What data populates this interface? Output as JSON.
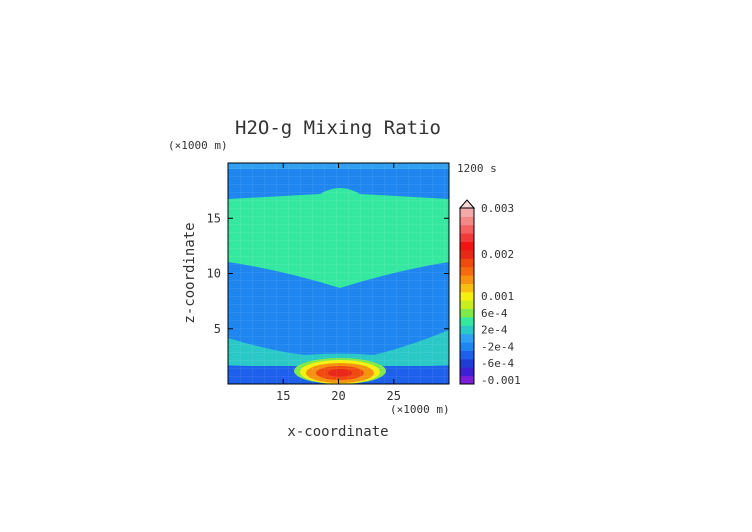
{
  "chart_data": {
    "type": "heatmap",
    "title": "H2O-g Mixing Ratio",
    "time_label": "1200 s",
    "xlabel": "x-coordinate",
    "ylabel": "z-coordinate",
    "x_unit": "(×1000 m)",
    "y_unit": "(×1000 m)",
    "xlim": [
      10,
      30
    ],
    "ylim": [
      0,
      20
    ],
    "x_ticks": [
      {
        "value": 15,
        "label": "15"
      },
      {
        "value": 20,
        "label": "20"
      },
      {
        "value": 25,
        "label": "25"
      }
    ],
    "y_ticks": [
      {
        "value": 5,
        "label": "5"
      },
      {
        "value": 10,
        "label": "10"
      },
      {
        "value": 15,
        "label": "15"
      }
    ],
    "colorbar": {
      "levels": [
        {
          "color": "#7a1fd6"
        },
        {
          "color": "#3c1fd6"
        },
        {
          "color": "#1f3cd6"
        },
        {
          "color": "#1e60ec"
        },
        {
          "color": "#1f86ef"
        },
        {
          "color": "#2fa0f2"
        },
        {
          "color": "#2bc8c8"
        },
        {
          "color": "#35e8a0"
        },
        {
          "color": "#7fe84a"
        },
        {
          "color": "#c8ee20"
        },
        {
          "color": "#f5f010"
        },
        {
          "color": "#f7c010"
        },
        {
          "color": "#f59210"
        },
        {
          "color": "#f56a10"
        },
        {
          "color": "#f04a10"
        },
        {
          "color": "#e82818"
        },
        {
          "color": "#f01414"
        },
        {
          "color": "#f23a3a"
        },
        {
          "color": "#f26060"
        },
        {
          "color": "#f28888"
        },
        {
          "color": "#f4aaaa"
        }
      ],
      "labels": [
        {
          "text": "-0.001",
          "level": 0
        },
        {
          "text": "-6e-4",
          "level": 2
        },
        {
          "text": "-2e-4",
          "level": 4
        },
        {
          "text": "2e-4",
          "level": 6
        },
        {
          "text": "6e-4",
          "level": 8
        },
        {
          "text": "0.001",
          "level": 10
        },
        {
          "text": "0.002",
          "level": 15
        },
        {
          "text": "0.003",
          "level": 20
        }
      ]
    },
    "fields": [
      {
        "id": "lower-band",
        "color": "#2bc8c8"
      },
      {
        "id": "upper-band",
        "color": "#35e8a0"
      },
      {
        "id": "blob-1",
        "color": "#7fe84a"
      },
      {
        "id": "blob-2",
        "color": "#f5f010"
      },
      {
        "id": "blob-3",
        "color": "#f59210"
      },
      {
        "id": "blob-4",
        "color": "#f04a10"
      },
      {
        "id": "blob-5",
        "color": "#e82818"
      }
    ]
  }
}
